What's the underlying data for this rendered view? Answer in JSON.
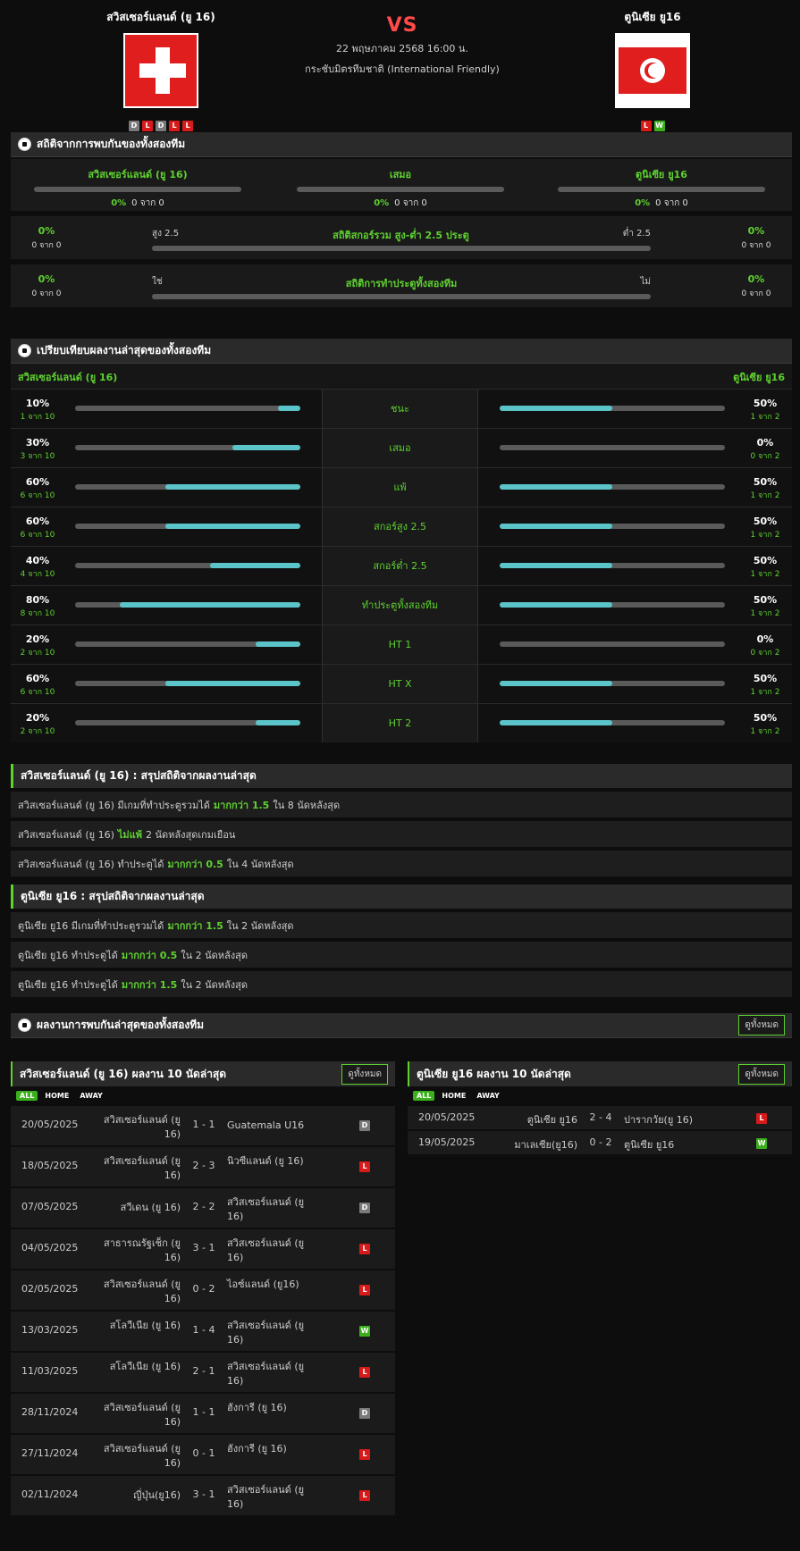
{
  "match": {
    "home": {
      "name": "สวิสเซอร์แลนด์ (ยู 16)",
      "form": [
        "D",
        "L",
        "D",
        "L",
        "L"
      ]
    },
    "away": {
      "name": "ตูนิเซีย ยู16",
      "form": [
        "L",
        "W"
      ]
    },
    "vs": "VS",
    "datetime": "22 พฤษภาคม 2568 16:00 น.",
    "competition": "กระชับมิตรทีมชาติ (International Friendly)"
  },
  "h2h": {
    "title": "สถิติจากการพบกันของทั้งสองทีม",
    "cols": [
      {
        "label": "สวิสเซอร์แลนด์ (ยู 16)",
        "pct": "0%",
        "count": "0 จาก 0"
      },
      {
        "label": "เสมอ",
        "pct": "0%",
        "count": "0 จาก 0"
      },
      {
        "label": "ตูนิเซีย ยู16",
        "pct": "0%",
        "count": "0 จาก 0"
      }
    ],
    "ou": {
      "center": "สถิติสกอร์รวม สูง-ต่ำ 2.5 ประตู",
      "left_label": "สูง 2.5",
      "right_label": "ต่ำ 2.5",
      "left_pct": "0%",
      "left_count": "0 จาก 0",
      "right_pct": "0%",
      "right_count": "0 จาก 0"
    },
    "btts": {
      "center": "สถิติการทำประตูทั้งสองทีม",
      "left_label": "ใช่",
      "right_label": "ไม่",
      "left_pct": "0%",
      "left_count": "0 จาก 0",
      "right_pct": "0%",
      "right_count": "0 จาก 0"
    }
  },
  "compare": {
    "title": "เปรียบเทียบผลงานล่าสุดของทั้งสองทีม",
    "home_name": "สวิสเซอร์แลนด์ (ยู 16)",
    "away_name": "ตูนิเซีย ยู16",
    "rows": [
      {
        "label": "ชนะ",
        "home_pct": "10%",
        "home_count": "1 จาก 10",
        "home_val": 10,
        "away_pct": "50%",
        "away_count": "1 จาก 2",
        "away_val": 50
      },
      {
        "label": "เสมอ",
        "home_pct": "30%",
        "home_count": "3 จาก 10",
        "home_val": 30,
        "away_pct": "0%",
        "away_count": "0 จาก 2",
        "away_val": 0
      },
      {
        "label": "แพ้",
        "home_pct": "60%",
        "home_count": "6 จาก 10",
        "home_val": 60,
        "away_pct": "50%",
        "away_count": "1 จาก 2",
        "away_val": 50
      },
      {
        "label": "สกอร์สูง 2.5",
        "home_pct": "60%",
        "home_count": "6 จาก 10",
        "home_val": 60,
        "away_pct": "50%",
        "away_count": "1 จาก 2",
        "away_val": 50
      },
      {
        "label": "สกอร์ต่ำ 2.5",
        "home_pct": "40%",
        "home_count": "4 จาก 10",
        "home_val": 40,
        "away_pct": "50%",
        "away_count": "1 จาก 2",
        "away_val": 50
      },
      {
        "label": "ทำประตูทั้งสองทีม",
        "home_pct": "80%",
        "home_count": "8 จาก 10",
        "home_val": 80,
        "away_pct": "50%",
        "away_count": "1 จาก 2",
        "away_val": 50
      },
      {
        "label": "HT 1",
        "home_pct": "20%",
        "home_count": "2 จาก 10",
        "home_val": 20,
        "away_pct": "0%",
        "away_count": "0 จาก 2",
        "away_val": 0
      },
      {
        "label": "HT X",
        "home_pct": "60%",
        "home_count": "6 จาก 10",
        "home_val": 60,
        "away_pct": "50%",
        "away_count": "1 จาก 2",
        "away_val": 50
      },
      {
        "label": "HT 2",
        "home_pct": "20%",
        "home_count": "2 จาก 10",
        "home_val": 20,
        "away_pct": "50%",
        "away_count": "1 จาก 2",
        "away_val": 50
      }
    ]
  },
  "home_summary": {
    "title": "สวิสเซอร์แลนด์ (ยู 16) : สรุปสถิติจากผลงานล่าสุด",
    "rows": [
      {
        "pre": "สวิสเซอร์แลนด์ (ยู 16) มีเกมที่ทำประตูรวมได้",
        "key": "มากกว่า 1.5",
        "post": "ใน 8 นัดหลังสุด"
      },
      {
        "pre": "สวิสเซอร์แลนด์ (ยู 16)",
        "key": "ไม่แพ้",
        "post": "2 นัดหลังสุดเกมเยือน"
      },
      {
        "pre": "สวิสเซอร์แลนด์ (ยู 16) ทำประตูได้",
        "key": "มากกว่า 0.5",
        "post": "ใน 4 นัดหลังสุด"
      }
    ]
  },
  "away_summary": {
    "title": "ตูนิเซีย ยู16 : สรุปสถิติจากผลงานล่าสุด",
    "rows": [
      {
        "pre": "ตูนิเซีย ยู16 มีเกมที่ทำประตูรวมได้",
        "key": "มากกว่า 1.5",
        "post": "ใน 2 นัดหลังสุด"
      },
      {
        "pre": "ตูนิเซีย ยู16 ทำประตูได้",
        "key": "มากกว่า 0.5",
        "post": "ใน 2 นัดหลังสุด"
      },
      {
        "pre": "ตูนิเซีย ยู16 ทำประตูได้",
        "key": "มากกว่า 1.5",
        "post": "ใน 2 นัดหลังสุด"
      }
    ]
  },
  "recent": {
    "title": "ผลงานการพบกันล่าสุดของทั้งสองทีม",
    "all_button": "ดูทั้งหมด"
  },
  "home_last": {
    "title": "สวิสเซอร์แลนด์ (ยู 16) ผลงาน 10 นัดล่าสุด",
    "button": "ดูทั้งหมด",
    "tabs": [
      "ALL",
      "HOME",
      "AWAY"
    ],
    "matches": [
      {
        "date": "20/05/2025",
        "home": "สวิสเซอร์แลนด์ (ยู 16)",
        "score": "1 - 1",
        "away": "Guatemala U16",
        "result": "D"
      },
      {
        "date": "18/05/2025",
        "home": "สวิสเซอร์แลนด์ (ยู 16)",
        "score": "2 - 3",
        "away": "นิวซีแลนด์ (ยู 16)",
        "result": "L"
      },
      {
        "date": "07/05/2025",
        "home": "สวีเดน (ยู 16)",
        "score": "2 - 2",
        "away": "สวิสเซอร์แลนด์ (ยู 16)",
        "result": "D"
      },
      {
        "date": "04/05/2025",
        "home": "สาธารณรัฐเช็ก (ยู 16)",
        "score": "3 - 1",
        "away": "สวิสเซอร์แลนด์ (ยู 16)",
        "result": "L"
      },
      {
        "date": "02/05/2025",
        "home": "สวิสเซอร์แลนด์ (ยู 16)",
        "score": "0 - 2",
        "away": "ไอซ์แลนด์ (ยู16)",
        "result": "L"
      },
      {
        "date": "13/03/2025",
        "home": "สโลวีเนีย (ยู 16)",
        "score": "1 - 4",
        "away": "สวิสเซอร์แลนด์ (ยู 16)",
        "result": "W"
      },
      {
        "date": "11/03/2025",
        "home": "สโลวีเนีย (ยู 16)",
        "score": "2 - 1",
        "away": "สวิสเซอร์แลนด์ (ยู 16)",
        "result": "L"
      },
      {
        "date": "28/11/2024",
        "home": "สวิสเซอร์แลนด์ (ยู 16)",
        "score": "1 - 1",
        "away": "ฮังการี (ยู 16)",
        "result": "D"
      },
      {
        "date": "27/11/2024",
        "home": "สวิสเซอร์แลนด์ (ยู 16)",
        "score": "0 - 1",
        "away": "ฮังการี (ยู 16)",
        "result": "L"
      },
      {
        "date": "02/11/2024",
        "home": "ญี่ปุ่น(ยู16)",
        "score": "3 - 1",
        "away": "สวิสเซอร์แลนด์ (ยู 16)",
        "result": "L"
      }
    ]
  },
  "away_last": {
    "title": "ตูนิเซีย ยู16 ผลงาน 10 นัดล่าสุด",
    "button": "ดูทั้งหมด",
    "tabs": [
      "ALL",
      "HOME",
      "AWAY"
    ],
    "matches": [
      {
        "date": "20/05/2025",
        "home": "ตูนิเซีย ยู16",
        "score": "2 - 4",
        "away": "ปารากวัย(ยู 16)",
        "result": "L"
      },
      {
        "date": "19/05/2025",
        "home": "มาเลเซีย(ยู16)",
        "score": "0 - 2",
        "away": "ตูนิเซีย ยู16",
        "result": "W"
      }
    ]
  },
  "colors": {
    "accent": "#5fd130",
    "loss": "#d71a1a",
    "draw": "#7a7a7a",
    "win": "#3bb01c",
    "bar_fill": "#5bc4c9"
  }
}
